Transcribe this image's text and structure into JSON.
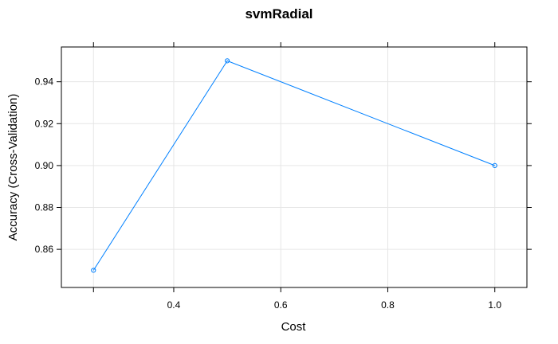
{
  "chart_data": {
    "type": "line",
    "title": "svmRadial",
    "xlabel": "Cost",
    "ylabel": "Accuracy (Cross-Validation)",
    "xlim": [
      0.19,
      1.06
    ],
    "ylim": [
      0.8418,
      0.9566
    ],
    "x_ticks": [
      0.25,
      0.4,
      0.6,
      0.8,
      1.0
    ],
    "x_tick_labels": [
      "",
      "0.4",
      "0.6",
      "0.8",
      "1.0"
    ],
    "y_ticks": [
      0.86,
      0.88,
      0.9,
      0.92,
      0.94
    ],
    "y_tick_labels": [
      "0.86",
      "0.88",
      "0.90",
      "0.92",
      "0.94"
    ],
    "grid": true,
    "series": [
      {
        "x": [
          0.25,
          0.5,
          1.0
        ],
        "values": [
          0.85,
          0.95,
          0.9
        ],
        "color": "#0080ff",
        "marker": "open-circle"
      }
    ]
  }
}
